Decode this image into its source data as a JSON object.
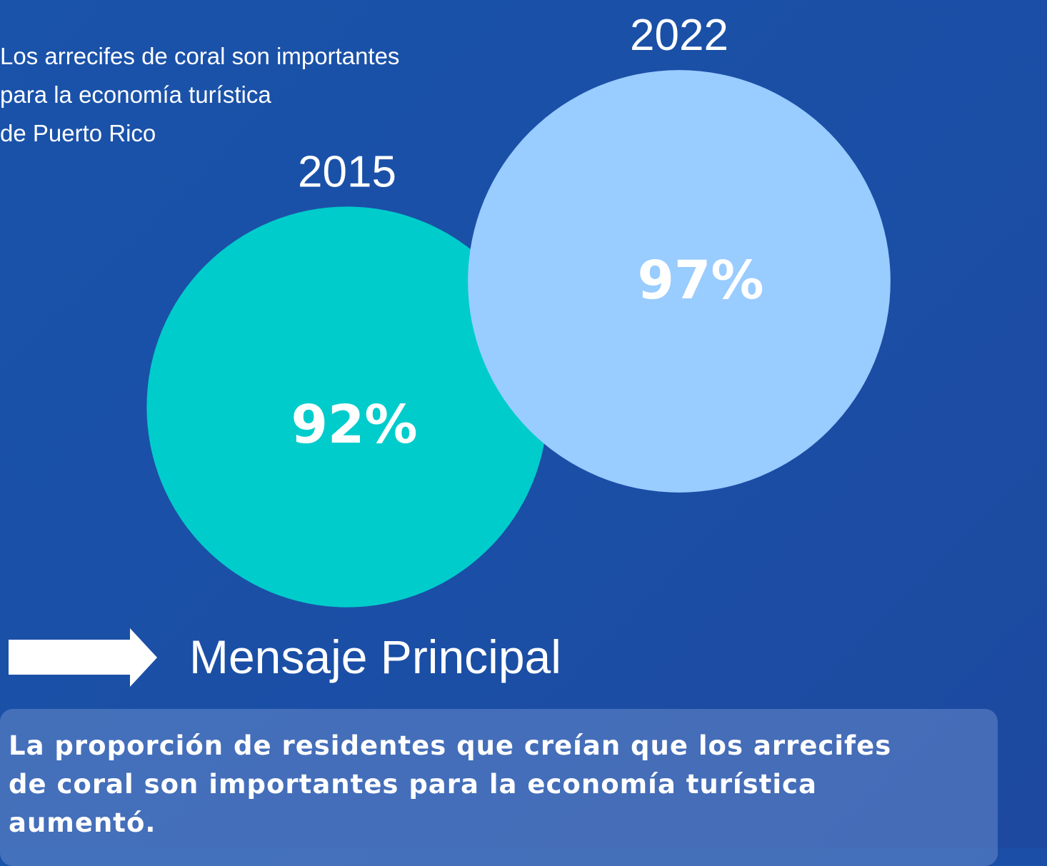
{
  "chart_data": {
    "type": "bubble",
    "title": "Los arrecifes de coral son importantes\npara la economía turística\nde Puerto Rico",
    "categories": [
      "2015",
      "2022"
    ],
    "values": [
      92,
      97
    ],
    "value_labels": [
      "92%",
      "97%"
    ],
    "colors": [
      "#00cccc",
      "#99ccff"
    ]
  },
  "message": {
    "heading": "Mensaje Principal",
    "text": "La proporción de residentes que creían que los arrecifes\nde coral son importantes para la economía turística\naumentó."
  }
}
